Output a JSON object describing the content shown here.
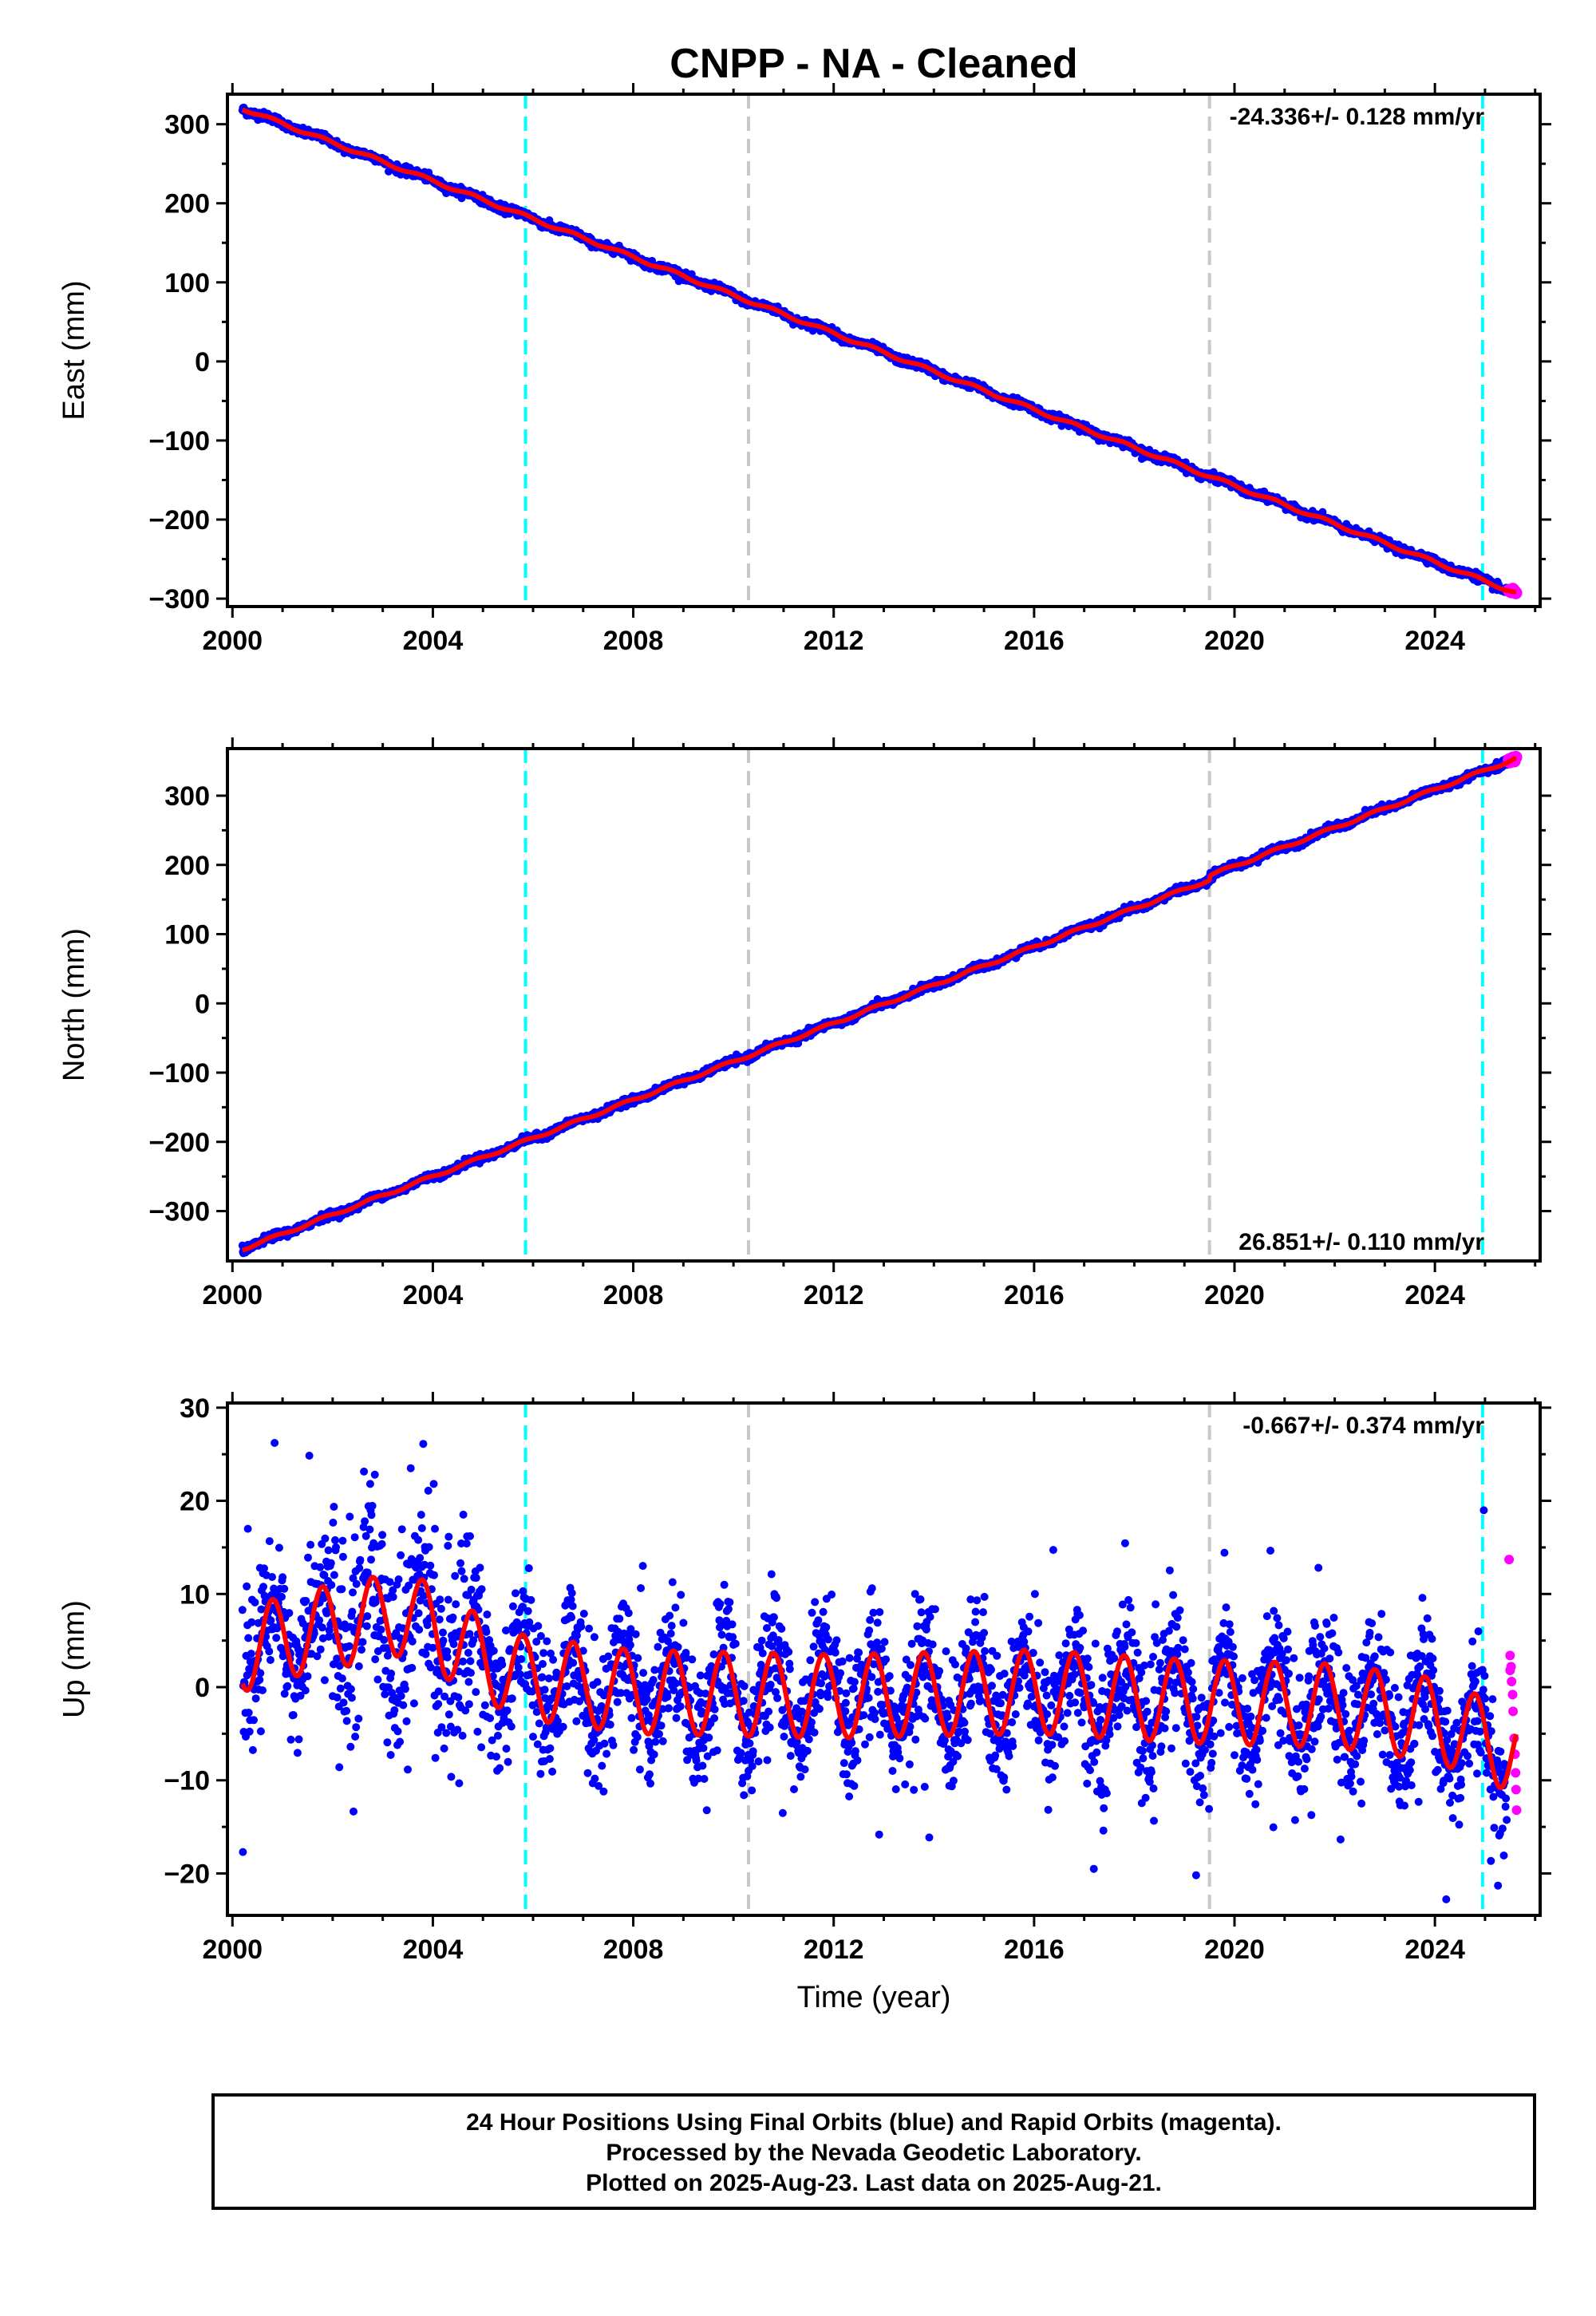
{
  "chart_data": {
    "title": "CNPP  - NA - Cleaned",
    "xlabel": "Time (year)",
    "x_ticks": [
      2000,
      2004,
      2008,
      2012,
      2016,
      2020,
      2024
    ],
    "xlim": [
      1999.9,
      2026.1
    ],
    "colors": {
      "final": "#0000ff",
      "rapid": "#ff00ff",
      "model": "#ff0000",
      "event_cyan": "#00ffff",
      "event_gray": "#c8c8c8"
    },
    "events": [
      {
        "x": 2005.85,
        "color": "cyan"
      },
      {
        "x": 2010.3,
        "color": "gray"
      },
      {
        "x": 2019.5,
        "color": "gray"
      },
      {
        "x": 2024.95,
        "color": "cyan"
      }
    ],
    "panels": [
      {
        "type": "scatter",
        "ylabel": "East (mm)",
        "ylim": [
          -310,
          338
        ],
        "y_ticks": [
          -300,
          -200,
          -100,
          0,
          100,
          200,
          300
        ],
        "rate_label": "-24.336+/- 0.128 mm/yr",
        "rate_pos": "top-right",
        "start_year": 2000.2,
        "end_year": 2025.63,
        "start_value": 320,
        "end_value": -293,
        "seasonal_amp": 2,
        "scatter": 2.5,
        "offsets": []
      },
      {
        "type": "scatter",
        "ylabel": "North (mm)",
        "ylim": [
          -372,
          368
        ],
        "y_ticks": [
          -300,
          -200,
          -100,
          0,
          100,
          200,
          300
        ],
        "rate_label": "26.851+/- 0.110 mm/yr",
        "rate_pos": "bottom-right",
        "start_year": 2000.2,
        "end_year": 2025.63,
        "start_value": -355,
        "end_value": 348,
        "seasonal_amp": 2,
        "scatter": 2.5,
        "offsets": [
          {
            "x": 2019.5,
            "dy": 6
          }
        ]
      },
      {
        "type": "scatter",
        "ylabel": "Up (mm)",
        "ylim": [
          -24.5,
          30.5
        ],
        "y_ticks": [
          -20,
          -10,
          0,
          10,
          20,
          30
        ],
        "rate_label": "-0.667+/- 0.374 mm/yr",
        "rate_pos": "top-right",
        "start_year": 2000.2,
        "end_year": 2025.63,
        "seasonal_amp": 4.5,
        "scatter": 3.5,
        "up_mean": [
          [
            2000.2,
            4
          ],
          [
            2001.5,
            6
          ],
          [
            2003.5,
            8
          ],
          [
            2005.0,
            3
          ],
          [
            2005.85,
            1
          ],
          [
            2008.0,
            -0.5
          ],
          [
            2012.0,
            -1
          ],
          [
            2016.0,
            -0.5
          ],
          [
            2019.0,
            -1.5
          ],
          [
            2022.0,
            -2
          ],
          [
            2024.0,
            -3.5
          ],
          [
            2025.63,
            -7
          ]
        ],
        "rapid_points": [
          [
            2025.48,
            13.7
          ],
          [
            2025.5,
            3.4
          ],
          [
            2025.52,
            2.2
          ],
          [
            2025.53,
            0.6
          ],
          [
            2025.55,
            -0.8
          ],
          [
            2025.56,
            -2.6
          ],
          [
            2025.58,
            -5.5
          ],
          [
            2025.6,
            -7.2
          ],
          [
            2025.61,
            -9.2
          ],
          [
            2025.62,
            -11.0
          ],
          [
            2025.63,
            -13.2
          ],
          [
            2025.5,
            1.8
          ]
        ]
      }
    ]
  },
  "footer": {
    "line1": "24 Hour Positions Using Final Orbits (blue) and Rapid Orbits (magenta).",
    "line2": "Processed by the Nevada Geodetic Laboratory.",
    "line3": "Plotted on 2025-Aug-23. Last data on 2025-Aug-21."
  }
}
